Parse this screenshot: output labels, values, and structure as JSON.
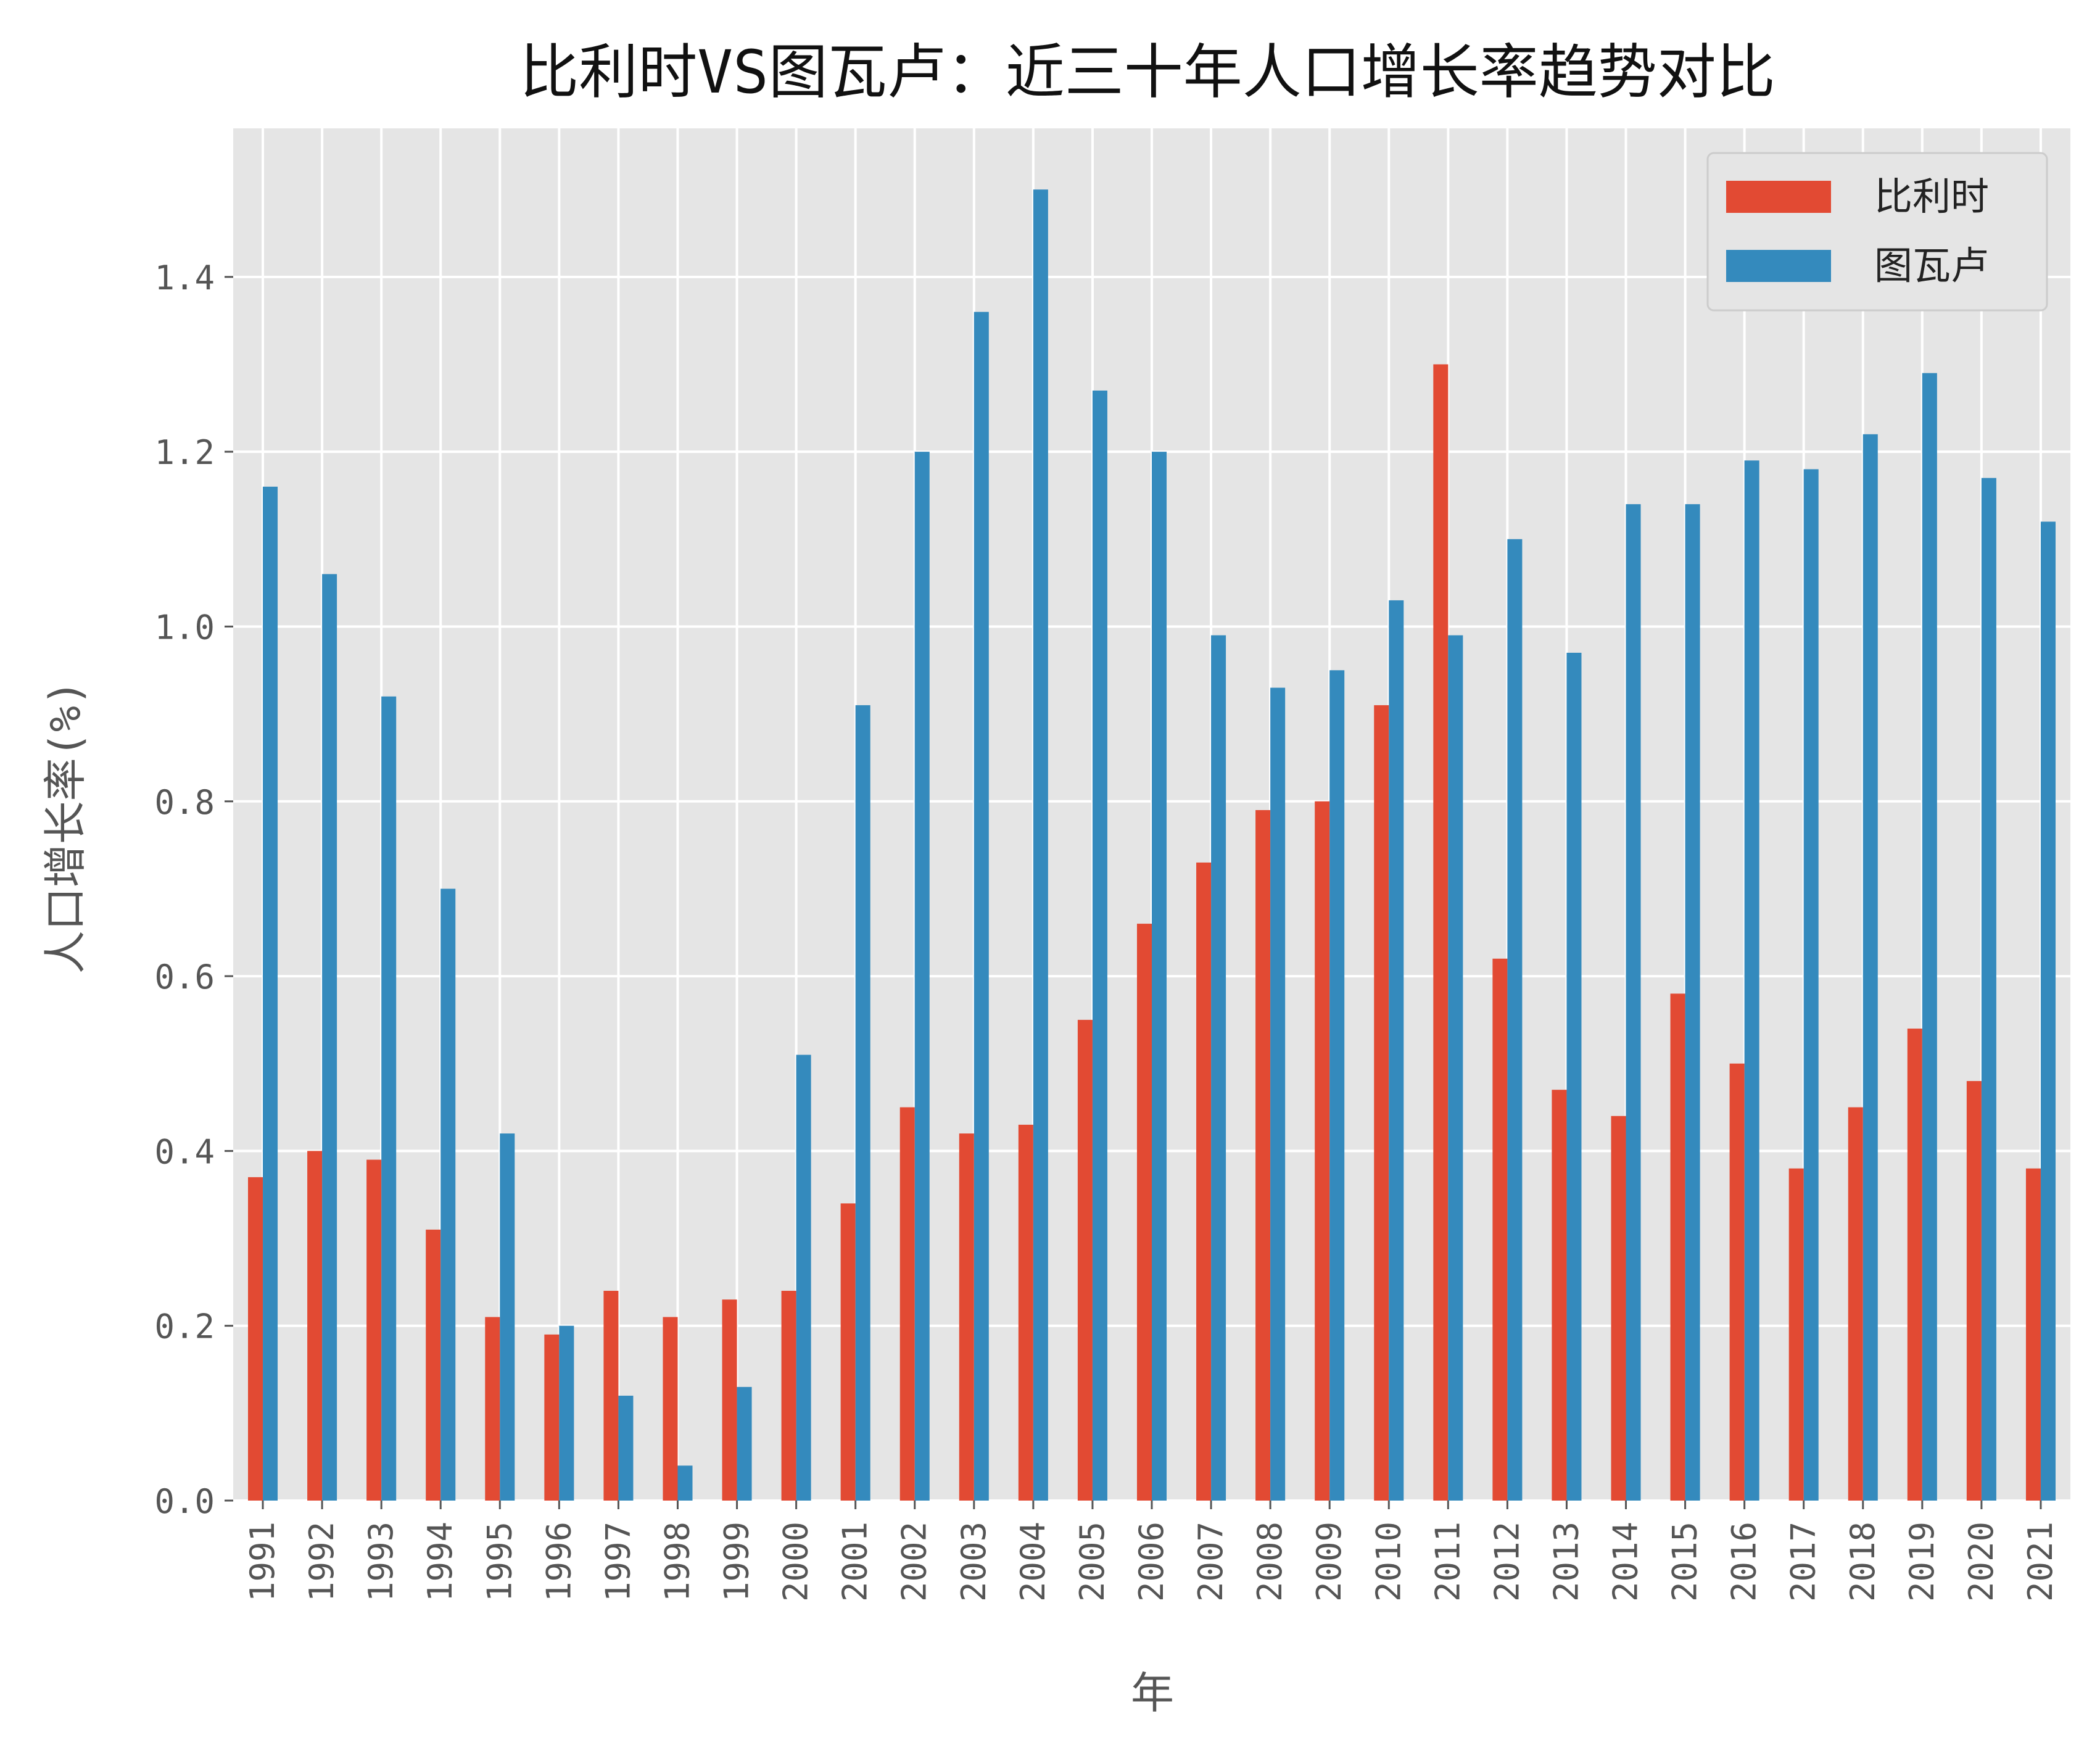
{
  "chart_data": {
    "type": "bar",
    "title": "比利时VS图瓦卢：近三十年人口增长率趋势对比",
    "xlabel": "年",
    "ylabel": "人口增长率(%)",
    "ylim": [
      0,
      1.57
    ],
    "yticks": [
      0.0,
      0.2,
      0.4,
      0.6,
      0.8,
      1.0,
      1.2,
      1.4
    ],
    "ytick_labels": [
      "0.0",
      "0.2",
      "0.4",
      "0.6",
      "0.8",
      "1.0",
      "1.2",
      "1.4"
    ],
    "grid": true,
    "legend_position": "top-right",
    "categories": [
      "1991",
      "1992",
      "1993",
      "1994",
      "1995",
      "1996",
      "1997",
      "1998",
      "1999",
      "2000",
      "2001",
      "2002",
      "2003",
      "2004",
      "2005",
      "2006",
      "2007",
      "2008",
      "2009",
      "2010",
      "2011",
      "2012",
      "2013",
      "2014",
      "2015",
      "2016",
      "2017",
      "2018",
      "2019",
      "2020",
      "2021"
    ],
    "series": [
      {
        "name": "比利时",
        "color": "#E24A33",
        "values": [
          0.37,
          0.4,
          0.39,
          0.31,
          0.21,
          0.19,
          0.24,
          0.21,
          0.23,
          0.24,
          0.34,
          0.45,
          0.42,
          0.43,
          0.55,
          0.66,
          0.73,
          0.79,
          0.8,
          0.91,
          1.3,
          0.62,
          0.47,
          0.44,
          0.58,
          0.5,
          0.38,
          0.45,
          0.54,
          0.48,
          0.38
        ]
      },
      {
        "name": "图瓦卢",
        "color": "#348ABD",
        "values": [
          1.16,
          1.06,
          0.92,
          0.7,
          0.42,
          0.2,
          0.12,
          0.04,
          0.13,
          0.51,
          0.91,
          1.2,
          1.36,
          1.5,
          1.27,
          1.2,
          0.99,
          0.93,
          0.95,
          1.03,
          0.99,
          1.1,
          0.97,
          1.14,
          1.14,
          1.19,
          1.18,
          1.22,
          1.29,
          1.17,
          1.12
        ]
      }
    ]
  },
  "style": {
    "plot_background": "#E5E5E5",
    "grid_color": "#FFFFFF",
    "legend_background": "#E5E5E5"
  }
}
